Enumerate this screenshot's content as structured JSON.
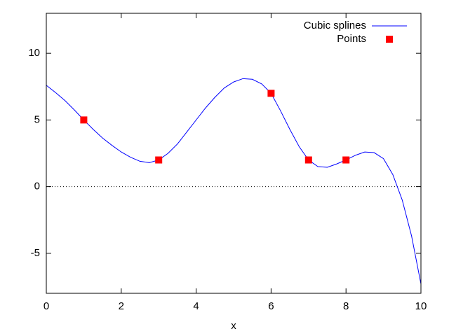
{
  "chart_data": {
    "type": "line",
    "xlabel": "x",
    "xlim": [
      0,
      10
    ],
    "xticks": [
      0,
      2,
      4,
      6,
      8,
      10
    ],
    "ylim": [
      -8,
      13
    ],
    "yticks": [
      -5,
      0,
      5,
      10
    ],
    "zeroaxis": true,
    "legend": "top-right",
    "series": [
      {
        "name": "Cubic splines",
        "type": "line",
        "color": "#0000ff",
        "x": [
          0,
          0.25,
          0.5,
          0.75,
          1,
          1.25,
          1.5,
          1.75,
          2,
          2.25,
          2.5,
          2.75,
          3,
          3.25,
          3.5,
          3.75,
          4,
          4.25,
          4.5,
          4.75,
          5,
          5.25,
          5.5,
          5.75,
          6,
          6.25,
          6.5,
          6.75,
          7,
          7.25,
          7.5,
          7.75,
          8,
          8.25,
          8.5,
          8.75,
          9,
          9.25,
          9.5,
          9.75,
          10
        ],
        "values": [
          7.6,
          7.05,
          6.45,
          5.75,
          5,
          4.3,
          3.65,
          3.1,
          2.6,
          2.2,
          1.9,
          1.8,
          2,
          2.5,
          3.2,
          4.1,
          5,
          5.9,
          6.7,
          7.4,
          7.85,
          8.1,
          8.05,
          7.7,
          7,
          5.7,
          4.3,
          3,
          2,
          1.5,
          1.45,
          1.7,
          2,
          2.35,
          2.6,
          2.55,
          2.1,
          0.9,
          -1.0,
          -3.7,
          -7.3
        ]
      },
      {
        "name": "Points",
        "type": "scatter",
        "color": "#ff0000",
        "x": [
          1,
          3,
          6,
          7,
          8
        ],
        "values": [
          5,
          2,
          7,
          2,
          2
        ]
      }
    ]
  }
}
